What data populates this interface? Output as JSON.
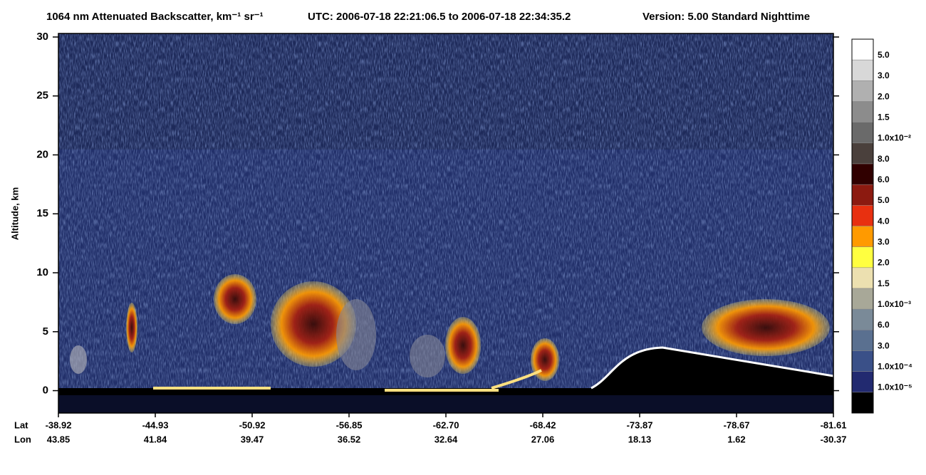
{
  "chart_data": {
    "type": "curtain",
    "title": "1064 nm Attenuated Backscatter, km⁻¹ sr⁻¹",
    "time_range": "UTC:  2006-07-18 22:21:06.5  to  2006-07-18 22:34:35.2",
    "version": "Version: 5.00  Standard  Nighttime",
    "y_label": "Altitude, km",
    "ylim": [
      -1.9,
      30.3
    ],
    "yticks": [
      0,
      5,
      10,
      15,
      20,
      25,
      30
    ],
    "x_row_names": [
      "Lat",
      "Lon"
    ],
    "lat": [
      "-38.92",
      "-44.93",
      "-50.92",
      "-56.85",
      "-62.70",
      "-68.42",
      "-73.87",
      "-78.67",
      "-81.61"
    ],
    "lon": [
      "43.85",
      "41.84",
      "39.47",
      "36.52",
      "32.64",
      "27.06",
      "18.13",
      "1.62",
      "-30.37"
    ],
    "colorbar": {
      "colors": [
        "#ffffff",
        "#d8d8d8",
        "#b0b0b0",
        "#8c8c8c",
        "#6a6a6a",
        "#4a403c",
        "#300000",
        "#8c1a10",
        "#e83010",
        "#ff9a00",
        "#ffff40",
        "#ece0b0",
        "#a8a898",
        "#7a8a98",
        "#5a7090",
        "#3a5088",
        "#222a70",
        "#000000"
      ],
      "labels": [
        "5.0",
        "3.0",
        "2.0",
        "1.5",
        "1.0x10⁻²",
        "8.0",
        "6.0",
        "5.0",
        "4.0",
        "3.0",
        "2.0",
        "1.5",
        "1.0x10⁻³",
        "6.0",
        "3.0",
        "1.0x10⁻⁴",
        "1.0x10⁻⁵"
      ]
    }
  }
}
